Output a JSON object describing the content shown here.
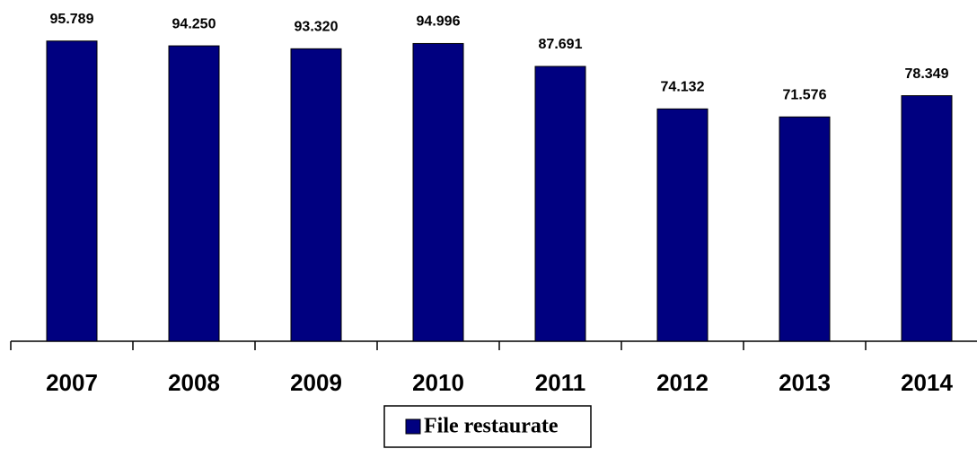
{
  "chart_data": {
    "type": "bar",
    "categories": [
      "2007",
      "2008",
      "2009",
      "2010",
      "2011",
      "2012",
      "2013",
      "2014"
    ],
    "series": [
      {
        "name": "File restaurate",
        "color": "#000080",
        "values": [
          95789,
          94250,
          93320,
          94996,
          87691,
          74132,
          71576,
          78349
        ],
        "value_labels": [
          "95.789",
          "94.250",
          "93.320",
          "94.996",
          "87.691",
          "74.132",
          "71.576",
          "78.349"
        ]
      }
    ],
    "ylim": [
      0,
      100000
    ],
    "legend": "bottom"
  }
}
